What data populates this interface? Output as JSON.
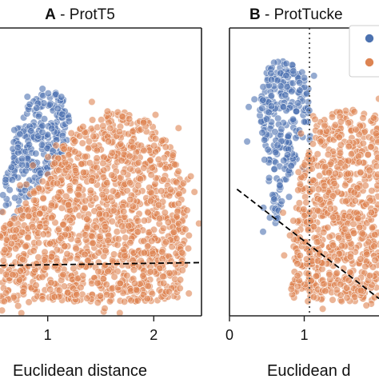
{
  "chart_data": [
    {
      "type": "scatter",
      "panel_letter": "A",
      "title": "ProtT5",
      "title_separator": " - ",
      "xlabel": "Euclidean distance",
      "xlim": [
        0.55,
        2.45
      ],
      "ylim": [
        0,
        1
      ],
      "xticks": [
        1,
        2
      ],
      "xtick_labels": [
        "1",
        "2"
      ],
      "series": [
        {
          "color": "#4c72b0",
          "cloud": [
            [
              0.55,
              0.4
            ],
            [
              0.62,
              0.52
            ],
            [
              0.7,
              0.64
            ],
            [
              0.82,
              0.74
            ],
            [
              0.98,
              0.79
            ],
            [
              1.12,
              0.77
            ],
            [
              1.23,
              0.72
            ],
            [
              1.18,
              0.6
            ],
            [
              1.02,
              0.5
            ],
            [
              0.84,
              0.42
            ],
            [
              0.66,
              0.36
            ]
          ]
        },
        {
          "color": "#dd8452",
          "cloud": [
            [
              0.55,
              0.05
            ],
            [
              0.8,
              0.05
            ],
            [
              1.2,
              0.05
            ],
            [
              1.6,
              0.05
            ],
            [
              2.0,
              0.05
            ],
            [
              2.22,
              0.06
            ],
            [
              2.3,
              0.18
            ],
            [
              2.3,
              0.32
            ],
            [
              2.28,
              0.44
            ],
            [
              2.22,
              0.54
            ],
            [
              2.12,
              0.62
            ],
            [
              1.95,
              0.68
            ],
            [
              1.72,
              0.71
            ],
            [
              1.48,
              0.7
            ],
            [
              1.28,
              0.65
            ],
            [
              1.12,
              0.58
            ],
            [
              0.98,
              0.5
            ],
            [
              0.85,
              0.44
            ],
            [
              0.7,
              0.36
            ],
            [
              0.55,
              0.3
            ]
          ]
        }
      ],
      "threshold_line": {
        "style": "dashed",
        "color": "#000000",
        "points": [
          [
            0.55,
            0.175
          ],
          [
            2.45,
            0.185
          ]
        ]
      }
    },
    {
      "type": "scatter",
      "panel_letter": "B",
      "title": "ProtTucke",
      "title_separator": " - ",
      "xlabel": "Euclidean d",
      "xlim": [
        0,
        2.0
      ],
      "ylim": [
        0,
        1
      ],
      "xticks": [
        0,
        1
      ],
      "xtick_labels": [
        "0",
        "1"
      ],
      "series": [
        {
          "color": "#4c72b0",
          "cloud": [
            [
              0.4,
              0.72
            ],
            [
              0.46,
              0.83
            ],
            [
              0.56,
              0.88
            ],
            [
              0.7,
              0.89
            ],
            [
              0.86,
              0.87
            ],
            [
              1.02,
              0.84
            ],
            [
              1.1,
              0.76
            ],
            [
              1.04,
              0.64
            ],
            [
              0.9,
              0.54
            ],
            [
              0.74,
              0.45
            ],
            [
              0.68,
              0.36
            ],
            [
              0.62,
              0.3
            ],
            [
              0.56,
              0.4
            ],
            [
              0.5,
              0.52
            ],
            [
              0.42,
              0.62
            ]
          ]
        },
        {
          "color": "#dd8452",
          "cloud": [
            [
              0.8,
              0.05
            ],
            [
              1.2,
              0.05
            ],
            [
              1.6,
              0.05
            ],
            [
              2.0,
              0.05
            ],
            [
              2.0,
              0.7
            ],
            [
              1.7,
              0.72
            ],
            [
              1.4,
              0.71
            ],
            [
              1.2,
              0.68
            ],
            [
              1.05,
              0.6
            ],
            [
              0.95,
              0.5
            ],
            [
              0.88,
              0.38
            ],
            [
              0.85,
              0.25
            ],
            [
              0.82,
              0.12
            ]
          ]
        }
      ],
      "threshold_line": {
        "style": "dashed",
        "color": "#000000",
        "points": [
          [
            0.1,
            0.44
          ],
          [
            2.0,
            0.06
          ]
        ]
      },
      "vline": {
        "x": 1.07,
        "style": "dotted",
        "color": "#555555"
      },
      "legend": {
        "placement": "top-right",
        "colors": [
          "#4c72b0",
          "#dd8452"
        ]
      }
    }
  ]
}
